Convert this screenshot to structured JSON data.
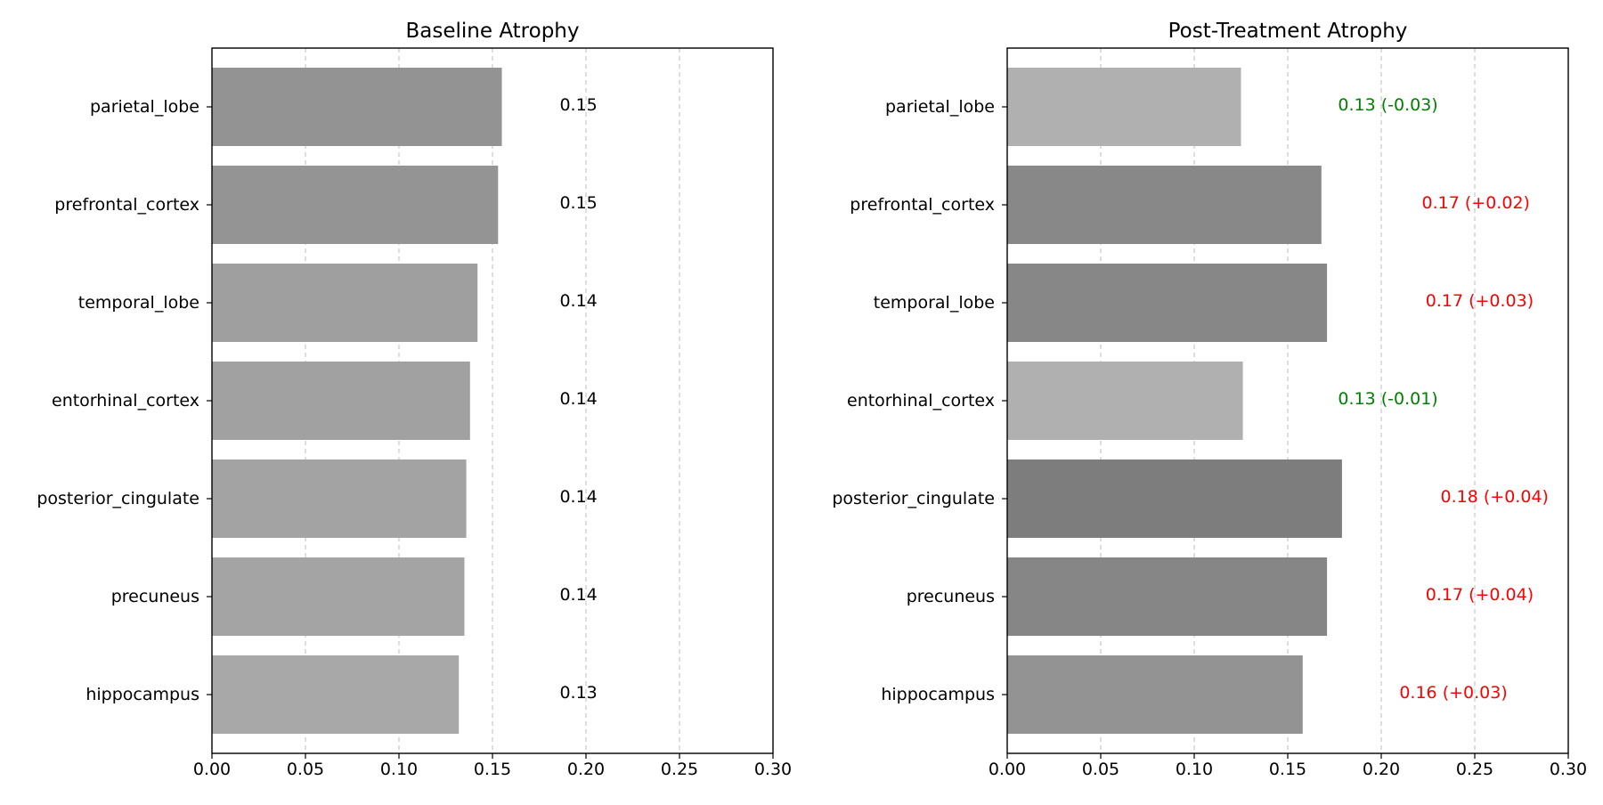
{
  "chart_data": [
    {
      "type": "bar",
      "orientation": "horizontal",
      "title": "Baseline Atrophy",
      "categories": [
        "parietal_lobe",
        "prefrontal_cortex",
        "temporal_lobe",
        "entorhinal_cortex",
        "posterior_cingulate",
        "precuneus",
        "hippocampus"
      ],
      "values": [
        0.155,
        0.153,
        0.142,
        0.138,
        0.136,
        0.135,
        0.132
      ],
      "labels": [
        "0.15",
        "0.15",
        "0.14",
        "0.14",
        "0.14",
        "0.14",
        "0.13"
      ],
      "label_colors": [
        "#000000",
        "#000000",
        "#000000",
        "#000000",
        "#000000",
        "#000000",
        "#000000"
      ],
      "bar_colors": [
        "#939393",
        "#949494",
        "#9f9f9f",
        "#a1a1a1",
        "#a3a3a3",
        "#a4a4a4",
        "#a8a8a8"
      ],
      "xlim": [
        0,
        0.3
      ],
      "xticks": [
        "0.00",
        "0.05",
        "0.10",
        "0.15",
        "0.20",
        "0.25",
        "0.30"
      ],
      "grid": "x-dashed",
      "xlabel": "",
      "ylabel": ""
    },
    {
      "type": "bar",
      "orientation": "horizontal",
      "title": "Post-Treatment Atrophy",
      "categories": [
        "parietal_lobe",
        "prefrontal_cortex",
        "temporal_lobe",
        "entorhinal_cortex",
        "posterior_cingulate",
        "precuneus",
        "hippocampus"
      ],
      "values": [
        0.125,
        0.168,
        0.171,
        0.126,
        0.179,
        0.171,
        0.158
      ],
      "labels": [
        "0.13 (-0.03)",
        "0.17 (+0.02)",
        "0.17 (+0.03)",
        "0.13 (-0.01)",
        "0.18 (+0.04)",
        "0.17 (+0.04)",
        "0.16 (+0.03)"
      ],
      "label_colors": [
        "#008000",
        "#ff0000",
        "#ff0000",
        "#008000",
        "#ff0000",
        "#ff0000",
        "#ff0000"
      ],
      "bar_colors": [
        "#b0b0b0",
        "#888888",
        "#878787",
        "#b0b0b0",
        "#7d7d7d",
        "#868686",
        "#939393"
      ],
      "xlim": [
        0,
        0.3
      ],
      "xticks": [
        "0.00",
        "0.05",
        "0.10",
        "0.15",
        "0.20",
        "0.25",
        "0.30"
      ],
      "grid": "x-dashed",
      "xlabel": "",
      "ylabel": ""
    }
  ]
}
